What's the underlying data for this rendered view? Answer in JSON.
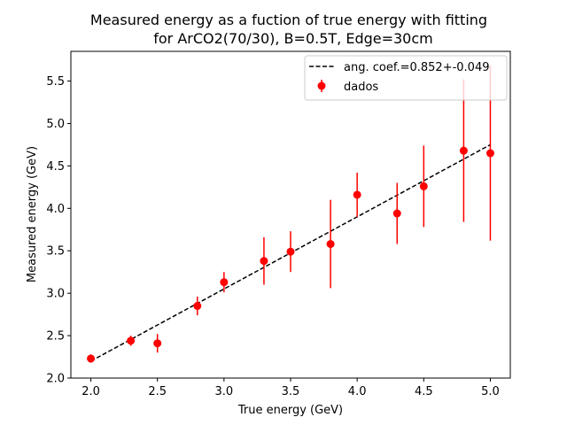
{
  "chart_data": {
    "type": "scatter",
    "title_line1": "Measured energy as a fuction of true energy with fitting",
    "title_line2": "for ArCO2(70/30), B=0.5T, Edge=30cm",
    "xlabel": "True energy (GeV)",
    "ylabel": "Measured energy (GeV)",
    "xlim": [
      1.85,
      5.15
    ],
    "ylim": [
      2.0,
      5.85
    ],
    "xticks": [
      2.0,
      2.5,
      3.0,
      3.5,
      4.0,
      4.5,
      5.0
    ],
    "xtick_labels": [
      "2.0",
      "2.5",
      "3.0",
      "3.5",
      "4.0",
      "4.5",
      "5.0"
    ],
    "yticks": [
      2.0,
      2.5,
      3.0,
      3.5,
      4.0,
      4.5,
      5.0,
      5.5
    ],
    "ytick_labels": [
      "2.0",
      "2.5",
      "3.0",
      "3.5",
      "4.0",
      "4.5",
      "5.0",
      "5.5"
    ],
    "grid": false,
    "legend_position": "top-right",
    "series": [
      {
        "name": "dados",
        "kind": "errorbar",
        "color": "#ff0000",
        "x": [
          2.0,
          2.3,
          2.5,
          2.8,
          3.0,
          3.3,
          3.5,
          3.8,
          4.0,
          4.3,
          4.5,
          4.8,
          5.0
        ],
        "y": [
          2.23,
          2.44,
          2.41,
          2.85,
          3.13,
          3.38,
          3.49,
          3.58,
          4.16,
          3.94,
          4.26,
          4.68,
          4.65
        ],
        "yerr": [
          0.05,
          0.06,
          0.11,
          0.11,
          0.12,
          0.28,
          0.24,
          0.52,
          0.26,
          0.36,
          0.48,
          0.84,
          1.03
        ]
      },
      {
        "name": "ang. coef.=0.852+-0.049",
        "kind": "fit_line",
        "color": "#000000",
        "dash": true,
        "x": [
          2.0,
          5.0
        ],
        "y": [
          2.2,
          4.75
        ]
      }
    ]
  }
}
